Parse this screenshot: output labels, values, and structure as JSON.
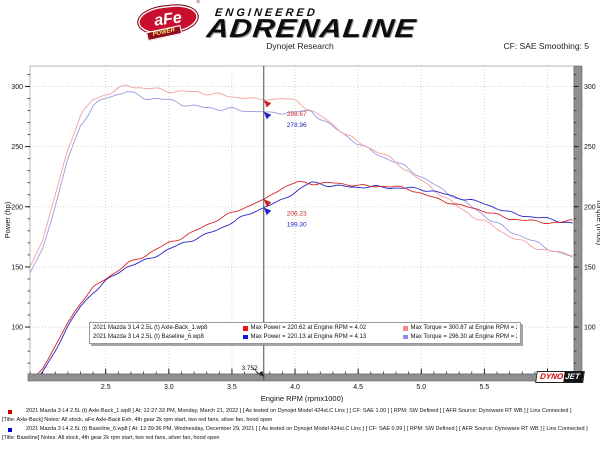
{
  "header": {
    "badge_text": "aFe",
    "badge_sub": "POWER",
    "badge_reg": "®",
    "logo_small": "ENGINEERED",
    "logo_large": "ADRENALINE",
    "subtitle": "Dynojet Research",
    "smoothing_label": "CF: SAE Smoothing: 5"
  },
  "chart_data": {
    "type": "line",
    "title": "",
    "xlabel": "Engine RPM (rpmx1000)",
    "ylabel_left": "Power (hp)",
    "ylabel_right": "Torque (ft-lbs)",
    "x_range": [
      1.9,
      6.21
    ],
    "y_range": [
      61,
      317
    ],
    "x_major_ticks": [
      2.5,
      3.0,
      3.5,
      4.0,
      4.5,
      5.0,
      5.5,
      6.0
    ],
    "x_tick_labels": [
      "2.5",
      "3.0",
      "3.5",
      "4.0",
      "4.5",
      "5.0",
      "5.5",
      ""
    ],
    "x_minor_step": 0.1,
    "y_major_ticks": [
      100,
      150,
      200,
      250,
      300
    ],
    "y_minor_step": 10,
    "grid": "dotted",
    "x": [
      1.9,
      2.0,
      2.1,
      2.2,
      2.3,
      2.4,
      2.5,
      2.67,
      2.8,
      3.0,
      3.2,
      3.4,
      3.6,
      3.752,
      3.9,
      4.02,
      4.13,
      4.3,
      4.5,
      4.7,
      4.9,
      5.1,
      5.3,
      5.5,
      5.7,
      5.9,
      6.0,
      6.1,
      6.2
    ],
    "series": [
      {
        "name": "Baseline Torque",
        "unit": "ft-lbs",
        "color": "#9b9be0",
        "values": [
          145,
          165,
          200,
          240,
          268,
          283,
          290,
          296.3,
          291,
          288,
          284,
          281,
          280,
          278.96,
          277.5,
          278.5,
          279.9,
          266,
          252,
          242,
          231,
          219,
          206,
          193,
          180,
          170,
          166,
          162,
          158
        ]
      },
      {
        "name": "Axle-Back Torque",
        "unit": "ft-lbs",
        "color": "#f0a2a2",
        "values": [
          150,
          172,
          210,
          248,
          275,
          289,
          294,
          300.87,
          298,
          297,
          295,
          293,
          291,
          288.67,
          290,
          288.3,
          279.5,
          268,
          254,
          243,
          230,
          214,
          199,
          188,
          175,
          167,
          164,
          161,
          160
        ]
      },
      {
        "name": "Baseline Power",
        "unit": "hp",
        "color": "#2626c4",
        "values": [
          52.5,
          62.8,
          80,
          100.5,
          117.4,
          129.3,
          138,
          149.9,
          155.1,
          164.5,
          173,
          181.9,
          191.9,
          199.3,
          206.1,
          213.2,
          220.13,
          217.8,
          215.9,
          216.6,
          215.5,
          212.7,
          207.9,
          202.1,
          195.4,
          191,
          189.6,
          188.2,
          186.5
        ]
      },
      {
        "name": "Axle-Back Power",
        "unit": "hp",
        "color": "#d42727",
        "values": [
          54.3,
          65.5,
          84,
          103.9,
          120.4,
          132.1,
          139.9,
          153,
          158.9,
          169.6,
          179.7,
          189.7,
          199.5,
          206.23,
          215.3,
          220.62,
          219.8,
          219.4,
          217.6,
          217.4,
          214.6,
          207.8,
          200.8,
          196.9,
          189.9,
          187.6,
          187.4,
          187,
          188.9
        ]
      }
    ],
    "cursor": {
      "x": 3.752,
      "label": "3.752",
      "readouts": [
        {
          "value": 288.67,
          "label": "288.67",
          "color": "#cc2222"
        },
        {
          "value": 278.96,
          "label": "278.96",
          "color": "#2222cc"
        },
        {
          "value": 206.23,
          "label": "206.23",
          "color": "#cc2222"
        },
        {
          "value": 199.3,
          "label": "199.30",
          "color": "#2222cc"
        }
      ]
    },
    "legend_position": "bottom-center",
    "legend": [
      {
        "name": "2021 Mazda 3 L4 2.5L (t) Axle-Back_1.wp8",
        "power_color": "#ee1111",
        "power": "Max Power = 220.62 at Engine RPM = 4.02",
        "torque_color": "#f28a8a",
        "torque": "Max Torque = 300.87 at Engine RPM = 2.67"
      },
      {
        "name": "2021 Mazda 3 L4 2.5L (t) Baseline_6.wp8",
        "power_color": "#1111ee",
        "power": "Max Power = 220.13 at Engine RPM = 4.13",
        "torque_color": "#8a8aee",
        "torque": "Max Torque = 296.30 at Engine RPM = 2.65"
      }
    ],
    "watermark": {
      "left": "DYNO",
      "right": "JET"
    }
  },
  "footer": {
    "runs": [
      {
        "bullet_color": "#cc0000",
        "line": "2021 Mazda 3 L4 2.5L (t) Axle-Back_1.wp8 [ At: 12:27:33 PM, Monday, March 21, 2022 ] [ As tested on Dynojet Model 424xLC Linx ] [ CF: SAE 1.00 ] [ RPM: SW Defined ] [ AFR Source: Dynoware RT WB ] [ Linx Connected ]",
        "notes": "[Title: Axle-Back]  Notes: All stock, aFe Axle-Back Exh, 4th gear 2k rpm start, two red fans, silver fan, hood open"
      },
      {
        "bullet_color": "#0000cc",
        "line": "2021 Mazda 3 L4 2.5L (t) Baseline_6.wp8 [ At: 12:39:36 PM, Wednesday, December 29, 2021 ] [ As tested on Dynojet Model 424xLC Linx ] [ CF: SAE 0.99 ] [ RPM: SW Defined ] [ AFR Source: Dynoware RT WB ] [ Linx Connected ]",
        "notes": "[Title: Baseline]  Notes: All stock, 4th gear 2k rpm start, two red fans, silver fan, hood open"
      }
    ]
  }
}
